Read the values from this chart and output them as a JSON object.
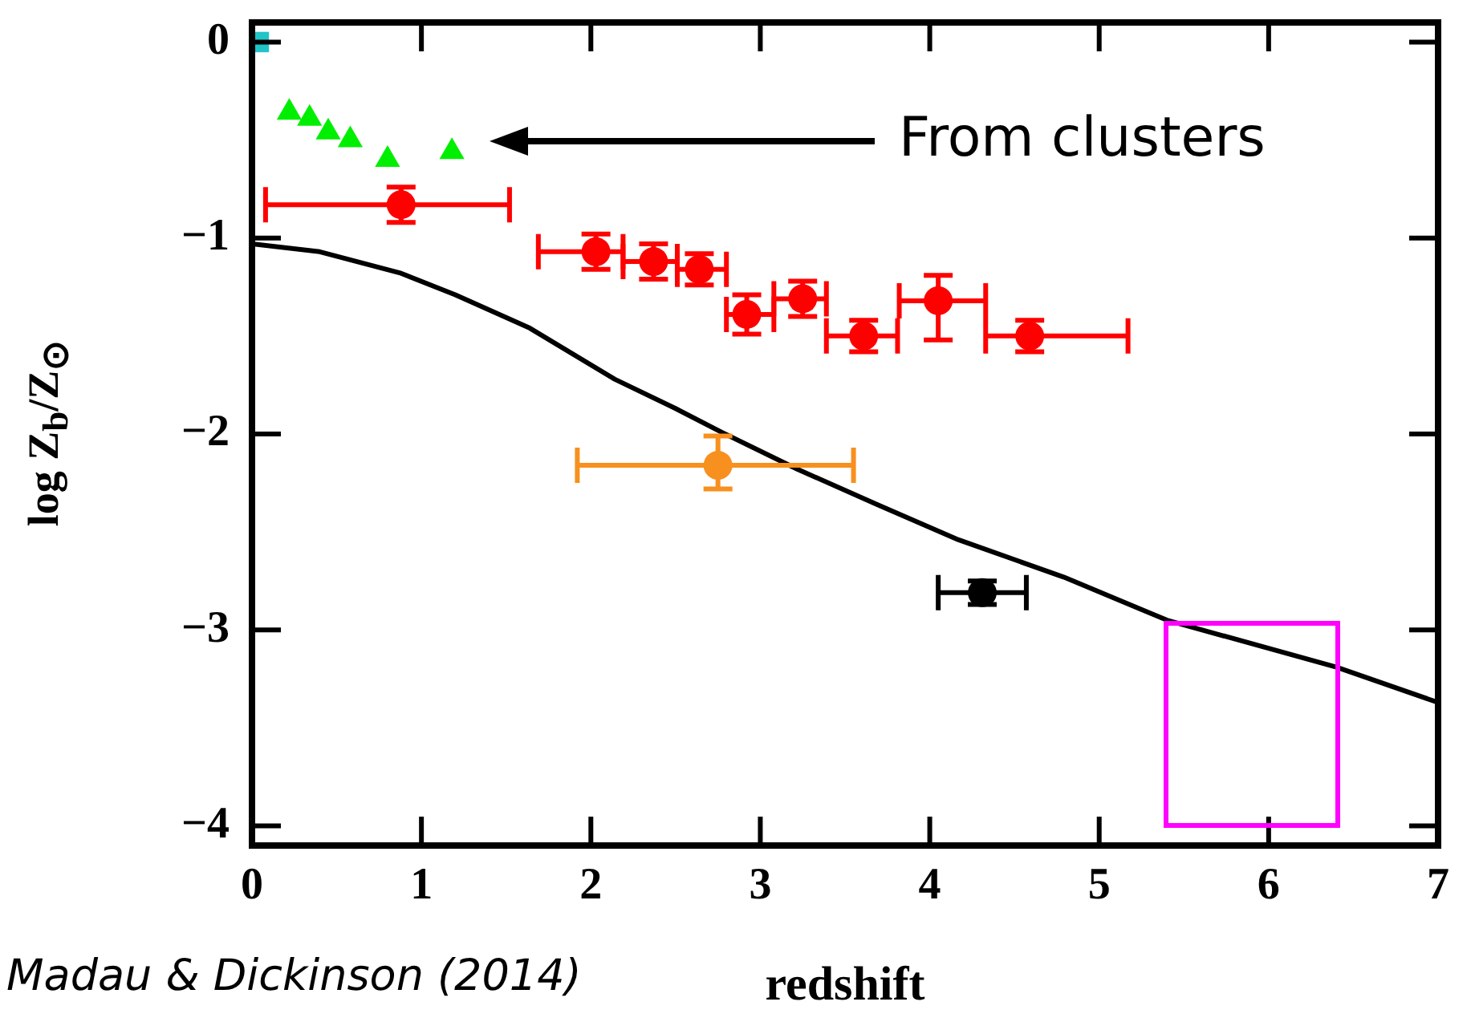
{
  "chart_data": {
    "type": "scatter",
    "xlabel": "redshift",
    "ylabel": "log Z$_{b}$/Z$_{⊙}$",
    "xlim": [
      0,
      7
    ],
    "ylim": [
      -4.1,
      0.1
    ],
    "xticks": [
      0,
      1,
      2,
      3,
      4,
      5,
      6,
      7
    ],
    "yticks": [
      0,
      -1,
      -2,
      -3,
      -4
    ],
    "grid": false,
    "legend": false,
    "annotations": [
      "From clusters",
      "Madau & Dickinson (2014)"
    ],
    "series": [
      {
        "marker": "square",
        "color": "#22c4c8",
        "x": [
          0.04
        ],
        "values": [
          0
        ]
      },
      {
        "marker": "triangle",
        "color": "#00ee00",
        "x": [
          0.22,
          0.34,
          0.45,
          0.58,
          0.8,
          1.18
        ],
        "values": [
          -0.36,
          -0.39,
          -0.46,
          -0.5,
          -0.6,
          -0.56
        ]
      },
      {
        "marker": "circle",
        "color": "#ff0000",
        "x": [
          0.88,
          2.03,
          2.37,
          2.64,
          2.92,
          3.25,
          3.61,
          4.05,
          4.59
        ],
        "values": [
          -0.83,
          -1.07,
          -1.12,
          -1.16,
          -1.39,
          -1.31,
          -1.5,
          -1.32,
          -1.5
        ],
        "errors": [
          0.09,
          0.09,
          0.09,
          0.08,
          0.1,
          0.09,
          0.08,
          [
            -1.52,
            -1.19
          ],
          0.08
        ],
        "xerrors": [
          [
            0.08,
            1.52
          ],
          [
            1.69,
            2.19
          ],
          [
            2.19,
            2.51
          ],
          [
            2.51,
            2.8
          ],
          [
            2.8,
            3.08
          ],
          [
            3.08,
            3.39
          ],
          [
            3.39,
            3.81
          ],
          [
            3.82,
            4.33
          ],
          [
            4.33,
            5.17
          ]
        ]
      },
      {
        "marker": "circle",
        "color": "#f7901e",
        "x": [
          2.75
        ],
        "values": [
          -2.16
        ],
        "errors": [
          [
            -2.28,
            -2.01
          ]
        ],
        "xerrors": [
          [
            1.92,
            3.55
          ]
        ]
      },
      {
        "marker": "circle",
        "color": "#000000",
        "x": [
          4.31
        ],
        "values": [
          -2.81
        ],
        "errors": [
          0.06
        ],
        "xerrors": [
          [
            4.05,
            4.57
          ]
        ]
      },
      {
        "type": "line",
        "marker": "none",
        "color": "#000000",
        "x": [
          0,
          0.4,
          0.88,
          1.2,
          1.64,
          2.14,
          2.5,
          2.77,
          3.22,
          3.69,
          4.17,
          4.79,
          5.4,
          6.4,
          7
        ],
        "values": [
          -1.03,
          -1.07,
          -1.18,
          -1.29,
          -1.46,
          -1.72,
          -1.87,
          -1.99,
          -2.18,
          -2.36,
          -2.54,
          -2.73,
          -2.95,
          -3.19,
          -3.37
        ]
      }
    ]
  }
}
